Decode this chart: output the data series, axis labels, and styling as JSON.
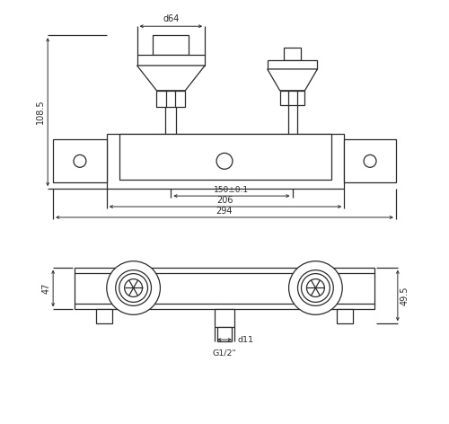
{
  "bg_color": "#ffffff",
  "line_color": "#2a2a2a",
  "fig_width": 5.0,
  "fig_height": 4.72,
  "annotations": {
    "phi64": "d64",
    "dim_1505": "150±0.1",
    "dim_206": "206",
    "dim_294": "294",
    "dim_1085": "108.5",
    "dim_47": "47",
    "dim_495": "49.5",
    "dim_phi11": "d11",
    "dim_g12": "G1/2\""
  }
}
